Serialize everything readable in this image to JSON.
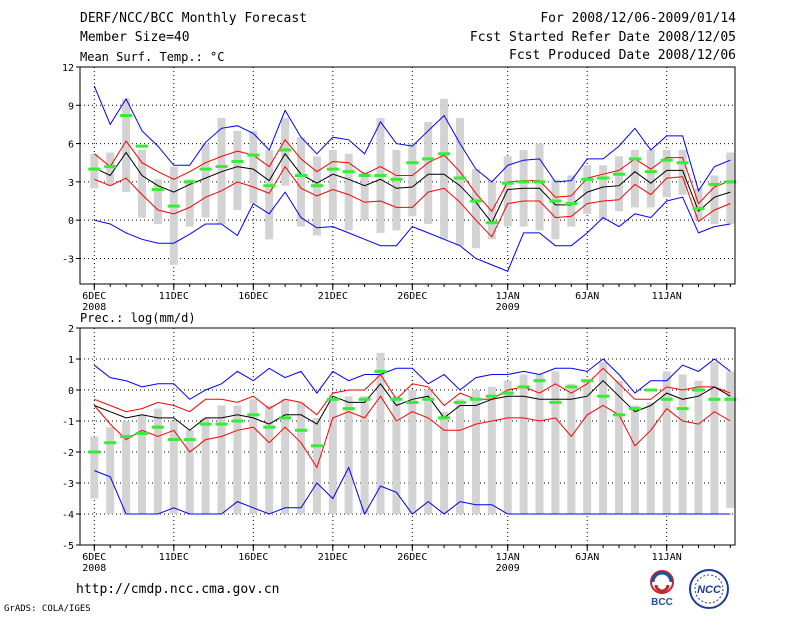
{
  "header": {
    "title": "DERF/NCC/BCC Monthly Forecast",
    "member_size": "Member Size=40",
    "period": "For 2008/12/06-2009/01/14",
    "fcst_start": "Fcst Started Refer Date 2008/12/05",
    "fcst_produced": "Fcst Produced Date 2008/12/06"
  },
  "footer": {
    "url": "http://cmdp.ncc.cma.gov.cn",
    "credit": "GrADS: COLA/IGES",
    "logo_left_text": "BCC",
    "logo_right_text": "NCC"
  },
  "colors": {
    "outer": "#0000ff",
    "inner": "#ff0000",
    "mean": "#000000",
    "box": "#d3d3d3",
    "marker": "#33ee33"
  },
  "chart_data": [
    {
      "type": "box-ensemble",
      "title": "Mean Surf. Temp.: °C",
      "ylim": [
        -5,
        12
      ],
      "yticks": [
        -3,
        0,
        3,
        6,
        9,
        12
      ],
      "xticks": [
        {
          "day": 1,
          "label": "6DEC",
          "sub": "2008"
        },
        {
          "day": 6,
          "label": "11DEC"
        },
        {
          "day": 11,
          "label": "16DEC"
        },
        {
          "day": 16,
          "label": "21DEC"
        },
        {
          "day": 21,
          "label": "26DEC"
        },
        {
          "day": 27,
          "label": "1JAN",
          "sub": "2009"
        },
        {
          "day": 32,
          "label": "6JAN"
        },
        {
          "day": 37,
          "label": "11JAN"
        }
      ],
      "series": {
        "upper_outer": [
          10.5,
          7.5,
          9.5,
          7,
          5.8,
          4.3,
          4.3,
          6.1,
          7.2,
          7.4,
          6.8,
          5.5,
          8.6,
          6.5,
          5.2,
          6.5,
          6.3,
          5.2,
          7.7,
          6,
          5.8,
          7,
          8.2,
          6,
          4,
          3,
          4.3,
          4.7,
          4.8,
          3,
          3.1,
          4.8,
          4.8,
          5.8,
          7.2,
          5.5,
          6.6,
          6.6,
          2.3,
          4.2,
          4.7
        ],
        "upper_inner": [
          5.2,
          4.2,
          6.2,
          4.5,
          3.8,
          3.2,
          3.8,
          4.5,
          5,
          5.4,
          5.1,
          4.2,
          6.3,
          4.8,
          3.8,
          4.6,
          4.5,
          3.6,
          4.2,
          3.5,
          3.5,
          4.5,
          5.1,
          3.8,
          2.1,
          0.7,
          3,
          3.1,
          3.1,
          1.8,
          1.9,
          3.3,
          3.6,
          3.9,
          4.8,
          4,
          4.9,
          4.9,
          1.3,
          2.6,
          3.1
        ],
        "mean": [
          4.1,
          3.5,
          5.3,
          3.5,
          2.7,
          2.2,
          2.8,
          3.3,
          3.8,
          4.2,
          4.0,
          3.1,
          5.2,
          3.6,
          2.9,
          3.6,
          3.2,
          2.7,
          3.2,
          2.5,
          2.6,
          3.6,
          3.6,
          2.7,
          1.4,
          -0.2,
          2.4,
          2.5,
          2.5,
          1.2,
          1.2,
          2.2,
          2.6,
          2.7,
          3.8,
          2.9,
          3.9,
          3.9,
          0.7,
          1.8,
          2.2
        ],
        "lower_inner": [
          3.2,
          2.7,
          3.3,
          2,
          0.8,
          0.5,
          1,
          1.8,
          2.3,
          3,
          2.6,
          2.1,
          4.2,
          2.5,
          1.9,
          2.4,
          2,
          1.4,
          1.5,
          1,
          1,
          2.2,
          2.5,
          1.4,
          0,
          -1.3,
          1.3,
          1.5,
          1.5,
          0.2,
          0.3,
          1.3,
          1.5,
          1.6,
          2.8,
          2,
          3.3,
          3.4,
          -0.1,
          0.8,
          1.3
        ],
        "lower_outer": [
          0,
          -0.3,
          -1,
          -1.5,
          -1.8,
          -1.8,
          -1.1,
          -0.3,
          -0.3,
          -1.2,
          1.3,
          0.5,
          2.2,
          0.2,
          -0.6,
          -0.5,
          -1,
          -1.5,
          -2,
          -2,
          -0.5,
          -1,
          -1.5,
          -2,
          -3,
          -3.5,
          -4,
          -1,
          -1,
          -2,
          -2,
          -1,
          0.2,
          -0.5,
          0.5,
          0.2,
          1.5,
          1.8,
          -1,
          -0.5,
          -0.3
        ],
        "box_top": [
          5.2,
          5.3,
          9.5,
          5.5,
          3.2,
          4.2,
          3.2,
          6,
          8,
          7,
          7,
          5.5,
          8,
          6.5,
          5,
          5.5,
          5.2,
          3.8,
          8,
          5.5,
          6,
          7.7,
          9.5,
          8,
          4,
          3,
          5,
          5.5,
          6,
          3.2,
          3.5,
          4.3,
          4.3,
          5,
          5.5,
          5.5,
          5.5,
          5.5,
          2.5,
          3.5,
          5.3
        ],
        "box_bottom": [
          2.5,
          2.7,
          2.2,
          0.2,
          -0.3,
          -3.5,
          -0.5,
          0.2,
          -0.3,
          0.8,
          1.3,
          -1.5,
          2.7,
          -0.5,
          -1.2,
          0,
          -0.8,
          0,
          -1,
          -0.8,
          0.3,
          -0.3,
          -1.5,
          -2,
          -2.2,
          -1.5,
          -0.5,
          -0.5,
          -0.8,
          -1.5,
          -0.5,
          0.5,
          0,
          0.7,
          1,
          1,
          1.8,
          2,
          0,
          -0.3,
          -0.3
        ],
        "marker": [
          4,
          4.2,
          8.2,
          5.8,
          2.4,
          1.1,
          3,
          4,
          4.2,
          4.6,
          5.1,
          2.7,
          5.5,
          3.5,
          2.7,
          4,
          3.8,
          3.5,
          3.5,
          3.2,
          4.5,
          4.8,
          5.2,
          3.3,
          1.5,
          -0.2,
          2.9,
          3,
          3,
          1.5,
          1.3,
          3.2,
          3.3,
          3.6,
          4.8,
          3.8,
          4.7,
          4.5,
          0.9,
          2.8,
          3
        ]
      }
    },
    {
      "type": "box-ensemble",
      "title": "Prec.: log(mm/d)",
      "ylim": [
        -5,
        2
      ],
      "yticks": [
        -5,
        -4,
        -3,
        -2,
        -1,
        0,
        1,
        2
      ],
      "xticks": [
        {
          "day": 1,
          "label": "6DEC",
          "sub": "2008"
        },
        {
          "day": 6,
          "label": "11DEC"
        },
        {
          "day": 11,
          "label": "16DEC"
        },
        {
          "day": 16,
          "label": "21DEC"
        },
        {
          "day": 21,
          "label": "26DEC"
        },
        {
          "day": 27,
          "label": "1JAN",
          "sub": "2009"
        },
        {
          "day": 32,
          "label": "6JAN"
        },
        {
          "day": 37,
          "label": "11JAN"
        }
      ],
      "series": {
        "upper_outer": [
          0.8,
          0.4,
          0.3,
          0.1,
          0.2,
          0.2,
          -0.3,
          0,
          0.2,
          0.6,
          0.3,
          0.7,
          0.4,
          0.6,
          -0.1,
          0.6,
          0.3,
          0.5,
          0.5,
          0.7,
          0.7,
          0.2,
          0.5,
          0,
          0.4,
          0.5,
          0.5,
          0.6,
          0.5,
          0.7,
          0.7,
          0.6,
          1,
          0.5,
          -0.1,
          0.3,
          0.3,
          0.8,
          0.6,
          1,
          0.6
        ],
        "upper_inner": [
          -0.3,
          -0.5,
          -0.7,
          -0.6,
          -0.4,
          -0.5,
          -0.7,
          -0.3,
          -0.3,
          -0.4,
          -0.2,
          -0.6,
          -0.3,
          -0.4,
          -0.8,
          -0.1,
          0,
          0,
          0.5,
          -0.3,
          0.2,
          0.1,
          -0.5,
          -0.1,
          -0.3,
          -0.3,
          0,
          0.1,
          -0.1,
          0.2,
          -0.1,
          0.2,
          0.7,
          0.2,
          -0.3,
          -0.3,
          0.1,
          0,
          0.1,
          0.1,
          -0.1
        ],
        "mean": [
          -0.5,
          -0.7,
          -0.9,
          -0.8,
          -0.9,
          -0.9,
          -1.3,
          -0.9,
          -0.9,
          -0.8,
          -0.9,
          -1.1,
          -0.8,
          -0.8,
          -1.1,
          -0.2,
          -0.4,
          -0.4,
          0.2,
          -0.5,
          -0.3,
          -0.2,
          -0.9,
          -0.5,
          -0.5,
          -0.3,
          -0.2,
          -0.2,
          -0.3,
          -0.3,
          -0.3,
          -0.2,
          0.3,
          -0.2,
          -0.7,
          -0.5,
          -0.1,
          -0.3,
          -0.2,
          0.1,
          -0.2
        ],
        "lower_inner": [
          -0.5,
          -1.1,
          -1.6,
          -1.3,
          -1.5,
          -1.3,
          -2,
          -1.6,
          -1.5,
          -1.3,
          -1.2,
          -1.7,
          -1.2,
          -1.7,
          -2.5,
          -0.9,
          -0.7,
          -0.9,
          -0.2,
          -1,
          -0.7,
          -0.9,
          -1.3,
          -1.3,
          -1.1,
          -1,
          -0.9,
          -0.9,
          -1,
          -0.9,
          -1.5,
          -0.8,
          -0.5,
          -0.8,
          -1.8,
          -1.3,
          -0.6,
          -1,
          -1.1,
          -0.7,
          -1
        ],
        "lower_outer": [
          -2.6,
          -2.8,
          -4,
          -4,
          -4,
          -3.8,
          -4,
          -4,
          -4,
          -3.6,
          -3.8,
          -4,
          -3.8,
          -3.8,
          -3,
          -3.5,
          -2.5,
          -4,
          -3.1,
          -3.3,
          -4,
          -3.6,
          -4,
          -3.6,
          -3.7,
          -3.7,
          -4,
          -4,
          -4,
          -4,
          -4,
          -4,
          -4,
          -4,
          -4,
          -4,
          -4,
          -4,
          -4,
          -4,
          -4
        ],
        "box_top": [
          -1.5,
          -1.2,
          -1,
          -0.8,
          -0.6,
          -1,
          -1.3,
          -0.9,
          -0.5,
          -0.5,
          -0.3,
          -0.5,
          -0.3,
          -0.4,
          -0.9,
          -0.3,
          -0.2,
          -0.2,
          1.2,
          -0.2,
          0,
          0,
          -0.7,
          -0.3,
          0,
          0.1,
          0.3,
          0.5,
          0.5,
          0.6,
          0.2,
          0.3,
          0.9,
          0.3,
          -0.5,
          -0.4,
          0.6,
          0.5,
          0.3,
          0.9,
          0.6
        ],
        "box_bottom": [
          -3.5,
          -4,
          -4,
          -4,
          -4,
          -4,
          -4,
          -4,
          -4,
          -4,
          -4,
          -4,
          -4,
          -4,
          -4,
          -4,
          -4,
          -4,
          -4,
          -4,
          -4,
          -4,
          -4,
          -4,
          -4,
          -4,
          -4,
          -4,
          -4,
          -4,
          -4,
          -4,
          -4,
          -4,
          -4,
          -4,
          -4,
          -4,
          -4,
          -4,
          -3.8
        ],
        "marker": [
          -2,
          -1.7,
          -1.5,
          -1.4,
          -1.2,
          -1.6,
          -1.6,
          -1.1,
          -1.1,
          -1,
          -0.8,
          -1.2,
          -0.9,
          -1.3,
          -1.8,
          -0.3,
          -0.6,
          -0.3,
          0.6,
          -0.3,
          -0.4,
          -0.3,
          -0.9,
          -0.4,
          -0.3,
          -0.2,
          -0.1,
          0.1,
          0.3,
          -0.4,
          0.1,
          0.3,
          -0.2,
          -0.8,
          -0.6,
          0,
          -0.3,
          -0.6,
          0,
          -0.3,
          -0.3
        ]
      }
    }
  ]
}
